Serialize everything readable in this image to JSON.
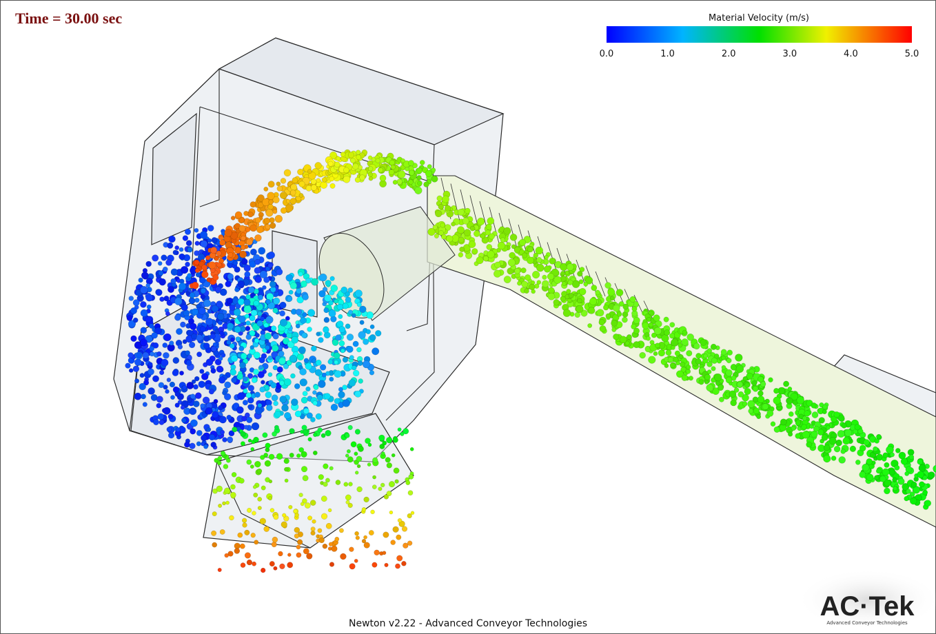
{
  "header": {
    "time": "Time = 30.00 sec"
  },
  "legend": {
    "title": "Material Velocity (m/s)",
    "ticks": [
      "0.0",
      "1.0",
      "2.0",
      "3.0",
      "4.0",
      "5.0"
    ]
  },
  "footer": {
    "caption": "Newton v2.22 - Advanced Conveyor Technologies"
  },
  "logo": {
    "name": "AC·Tek",
    "tagline": "Advanced Conveyor Technologies"
  }
}
